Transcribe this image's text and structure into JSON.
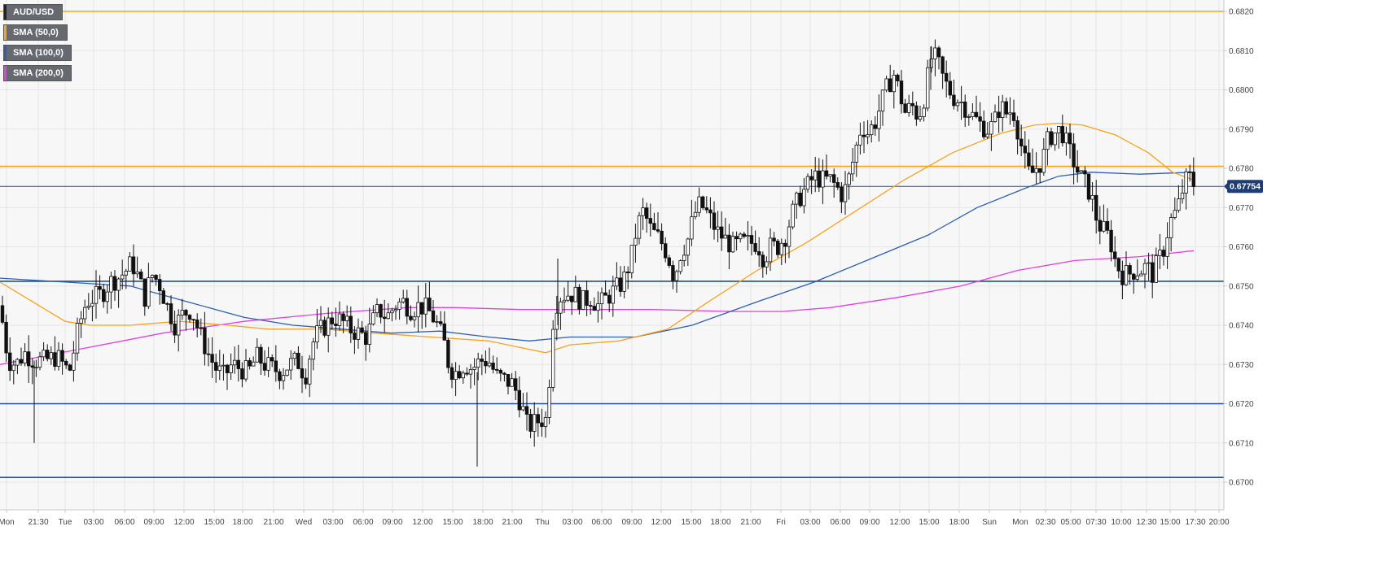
{
  "symbol": "AUD/USD",
  "legend": [
    {
      "label": "AUD/USD",
      "color": "#222222"
    },
    {
      "label": "SMA (50,0)",
      "color": "#f5a31c"
    },
    {
      "label": "SMA (100,0)",
      "color": "#2d5fb0"
    },
    {
      "label": "SMA (200,0)",
      "color": "#e040e0"
    }
  ],
  "colors": {
    "sma50": "#f5a31c",
    "sma100": "#2d5fb0",
    "sma200": "#e040e0",
    "resistance": "#f5a31c",
    "support": "#1f4e9a",
    "current_line": "#1f4e9a",
    "price_tag_bg": "#1f3c73",
    "grid": "#e6e6e6",
    "plot_bg": "#f7f7f7"
  },
  "chart_data": {
    "type": "candlestick",
    "instrument": "AUD/USD",
    "timeframe": "hourly",
    "ylim": [
      0.6692,
      0.6824
    ],
    "y_ticks": [
      "0.6700",
      "0.6710",
      "0.6720",
      "0.6730",
      "0.6740",
      "0.6750",
      "0.6760",
      "0.6770",
      "0.6780",
      "0.6790",
      "0.6800",
      "0.6810",
      "0.6820"
    ],
    "x_ticks": [
      "Mon",
      "21:30",
      "Tue",
      "03:00",
      "06:00",
      "09:00",
      "12:00",
      "15:00",
      "18:00",
      "21:00",
      "Wed",
      "03:00",
      "06:00",
      "09:00",
      "12:00",
      "15:00",
      "18:00",
      "21:00",
      "Thu",
      "03:00",
      "06:00",
      "09:00",
      "12:00",
      "15:00",
      "18:00",
      "21:00",
      "Fri",
      "03:00",
      "06:00",
      "09:00",
      "12:00",
      "15:00",
      "18:00",
      "Sun",
      "Mon",
      "02:30",
      "05:00",
      "07:30",
      "10:00",
      "12:30",
      "15:00",
      "17:30",
      "20:00"
    ],
    "current_price": "0.67754",
    "horizontal_levels": [
      {
        "price": 0.682,
        "kind": "resistance"
      },
      {
        "price": 0.67805,
        "kind": "resistance"
      },
      {
        "price": 0.67754,
        "kind": "current"
      },
      {
        "price": 0.67512,
        "kind": "support"
      },
      {
        "price": 0.672,
        "kind": "support"
      },
      {
        "price": 0.67012,
        "kind": "support"
      }
    ],
    "price_path": [
      [
        0,
        0.6745
      ],
      [
        10,
        0.6731
      ],
      [
        20,
        0.673
      ],
      [
        30,
        0.6733
      ],
      [
        42,
        0.6731
      ],
      [
        55,
        0.6731
      ],
      [
        70,
        0.6732
      ],
      [
        85,
        0.6728
      ],
      [
        95,
        0.6738
      ],
      [
        100,
        0.6742
      ],
      [
        106,
        0.6746
      ],
      [
        115,
        0.6747
      ],
      [
        125,
        0.6748
      ],
      [
        135,
        0.6751
      ],
      [
        145,
        0.6752
      ],
      [
        155,
        0.6754
      ],
      [
        162,
        0.6756
      ],
      [
        170,
        0.6752
      ],
      [
        178,
        0.6747
      ],
      [
        186,
        0.6753
      ],
      [
        195,
        0.6751
      ],
      [
        205,
        0.6745
      ],
      [
        215,
        0.674
      ],
      [
        225,
        0.6743
      ],
      [
        235,
        0.6744
      ],
      [
        245,
        0.6738
      ],
      [
        255,
        0.6733
      ],
      [
        265,
        0.6729
      ],
      [
        275,
        0.6727
      ],
      [
        285,
        0.673
      ],
      [
        295,
        0.6729
      ],
      [
        305,
        0.6728
      ],
      [
        315,
        0.6732
      ],
      [
        325,
        0.673
      ],
      [
        335,
        0.6729
      ],
      [
        345,
        0.6728
      ],
      [
        355,
        0.673
      ],
      [
        365,
        0.6731
      ],
      [
        375,
        0.6727
      ],
      [
        383,
        0.6735
      ],
      [
        390,
        0.6738
      ],
      [
        400,
        0.674
      ],
      [
        410,
        0.6742
      ],
      [
        420,
        0.6741
      ],
      [
        430,
        0.6739
      ],
      [
        440,
        0.6738
      ],
      [
        450,
        0.6737
      ],
      [
        458,
        0.6741
      ],
      [
        465,
        0.6744
      ],
      [
        475,
        0.6742
      ],
      [
        485,
        0.6745
      ],
      [
        495,
        0.6746
      ],
      [
        505,
        0.6744
      ],
      [
        515,
        0.6745
      ],
      [
        525,
        0.6744
      ],
      [
        535,
        0.6741
      ],
      [
        545,
        0.6736
      ],
      [
        552,
        0.6729
      ],
      [
        560,
        0.6728
      ],
      [
        570,
        0.673
      ],
      [
        580,
        0.6729
      ],
      [
        590,
        0.6731
      ],
      [
        600,
        0.6731
      ],
      [
        610,
        0.6727
      ],
      [
        620,
        0.6726
      ],
      [
        630,
        0.6725
      ],
      [
        640,
        0.672
      ],
      [
        648,
        0.6714
      ],
      [
        656,
        0.6715
      ],
      [
        664,
        0.6716
      ],
      [
        672,
        0.6716
      ],
      [
        678,
        0.674
      ],
      [
        685,
        0.6747
      ],
      [
        695,
        0.6748
      ],
      [
        705,
        0.6748
      ],
      [
        715,
        0.6746
      ],
      [
        725,
        0.6747
      ],
      [
        735,
        0.6745
      ],
      [
        745,
        0.6747
      ],
      [
        755,
        0.6749
      ],
      [
        765,
        0.6751
      ],
      [
        775,
        0.6757
      ],
      [
        782,
        0.6765
      ],
      [
        790,
        0.6769
      ],
      [
        800,
        0.6764
      ],
      [
        810,
        0.6762
      ],
      [
        820,
        0.6758
      ],
      [
        828,
        0.6752
      ],
      [
        835,
        0.6758
      ],
      [
        845,
        0.6762
      ],
      [
        852,
        0.6768
      ],
      [
        860,
        0.6771
      ],
      [
        870,
        0.6768
      ],
      [
        880,
        0.6764
      ],
      [
        890,
        0.6762
      ],
      [
        900,
        0.676
      ],
      [
        910,
        0.6761
      ],
      [
        920,
        0.6761
      ],
      [
        930,
        0.6761
      ],
      [
        938,
        0.6757
      ],
      [
        946,
        0.676
      ],
      [
        955,
        0.676
      ],
      [
        965,
        0.6763
      ],
      [
        972,
        0.6768
      ],
      [
        980,
        0.6772
      ],
      [
        990,
        0.6775
      ],
      [
        1000,
        0.6778
      ],
      [
        1010,
        0.6777
      ],
      [
        1020,
        0.6777
      ],
      [
        1028,
        0.6775
      ],
      [
        1035,
        0.6773
      ],
      [
        1042,
        0.6777
      ],
      [
        1050,
        0.6784
      ],
      [
        1058,
        0.6791
      ],
      [
        1066,
        0.6789
      ],
      [
        1075,
        0.6792
      ],
      [
        1083,
        0.6797
      ],
      [
        1090,
        0.6801
      ],
      [
        1098,
        0.6804
      ],
      [
        1105,
        0.6799
      ],
      [
        1112,
        0.6794
      ],
      [
        1120,
        0.6796
      ],
      [
        1128,
        0.6793
      ],
      [
        1136,
        0.6799
      ],
      [
        1143,
        0.6808
      ],
      [
        1150,
        0.6808
      ],
      [
        1158,
        0.6803
      ],
      [
        1165,
        0.68
      ],
      [
        1172,
        0.6798
      ],
      [
        1180,
        0.6797
      ],
      [
        1188,
        0.6795
      ],
      [
        1196,
        0.6793
      ],
      [
        1205,
        0.6791
      ],
      [
        1213,
        0.679
      ],
      [
        1220,
        0.6791
      ],
      [
        1228,
        0.6796
      ],
      [
        1236,
        0.6794
      ],
      [
        1244,
        0.6795
      ],
      [
        1252,
        0.6788
      ],
      [
        1258,
        0.6782
      ],
      [
        1265,
        0.6778
      ],
      [
        1272,
        0.678
      ],
      [
        1280,
        0.6782
      ],
      [
        1288,
        0.6788
      ],
      [
        1296,
        0.6789
      ],
      [
        1303,
        0.679
      ],
      [
        1310,
        0.6786
      ],
      [
        1318,
        0.6782
      ],
      [
        1326,
        0.6778
      ],
      [
        1333,
        0.6776
      ],
      [
        1340,
        0.6773
      ],
      [
        1348,
        0.6766
      ],
      [
        1356,
        0.6764
      ],
      [
        1363,
        0.6762
      ],
      [
        1370,
        0.6756
      ],
      [
        1378,
        0.6753
      ],
      [
        1386,
        0.6753
      ],
      [
        1393,
        0.6754
      ],
      [
        1400,
        0.6754
      ],
      [
        1408,
        0.6755
      ],
      [
        1415,
        0.6753
      ],
      [
        1422,
        0.6756
      ],
      [
        1430,
        0.676
      ],
      [
        1436,
        0.6766
      ],
      [
        1442,
        0.6768
      ],
      [
        1448,
        0.6771
      ],
      [
        1454,
        0.6776
      ],
      [
        1460,
        0.6778
      ],
      [
        1466,
        0.6776
      ]
    ],
    "sma50": [
      [
        0,
        0.6751
      ],
      [
        40,
        0.6746
      ],
      [
        80,
        0.6741
      ],
      [
        110,
        0.674
      ],
      [
        160,
        0.674
      ],
      [
        220,
        0.6741
      ],
      [
        280,
        0.674
      ],
      [
        330,
        0.6739
      ],
      [
        400,
        0.6739
      ],
      [
        460,
        0.6738
      ],
      [
        530,
        0.6737
      ],
      [
        600,
        0.6736
      ],
      [
        670,
        0.6733
      ],
      [
        700,
        0.6735
      ],
      [
        760,
        0.6736
      ],
      [
        820,
        0.6739
      ],
      [
        870,
        0.6746
      ],
      [
        930,
        0.6754
      ],
      [
        990,
        0.6761
      ],
      [
        1050,
        0.6769
      ],
      [
        1110,
        0.6777
      ],
      [
        1170,
        0.6784
      ],
      [
        1230,
        0.6789
      ],
      [
        1270,
        0.6791
      ],
      [
        1300,
        0.67915
      ],
      [
        1330,
        0.6791
      ],
      [
        1370,
        0.67885
      ],
      [
        1410,
        0.6784
      ],
      [
        1440,
        0.6779
      ],
      [
        1466,
        0.6777
      ]
    ],
    "sma100": [
      [
        0,
        0.6752
      ],
      [
        80,
        0.6751
      ],
      [
        160,
        0.675
      ],
      [
        230,
        0.6746
      ],
      [
        300,
        0.6742
      ],
      [
        360,
        0.674
      ],
      [
        420,
        0.6739
      ],
      [
        480,
        0.6738
      ],
      [
        540,
        0.67385
      ],
      [
        600,
        0.6737
      ],
      [
        650,
        0.6736
      ],
      [
        700,
        0.6737
      ],
      [
        780,
        0.6737
      ],
      [
        850,
        0.674
      ],
      [
        930,
        0.6746
      ],
      [
        1000,
        0.6751
      ],
      [
        1070,
        0.6757
      ],
      [
        1140,
        0.6763
      ],
      [
        1200,
        0.677
      ],
      [
        1260,
        0.6775
      ],
      [
        1300,
        0.6778
      ],
      [
        1340,
        0.6779
      ],
      [
        1400,
        0.67785
      ],
      [
        1466,
        0.6779
      ]
    ],
    "sma200": [
      [
        0,
        0.673
      ],
      [
        100,
        0.6734
      ],
      [
        200,
        0.6738
      ],
      [
        300,
        0.6741
      ],
      [
        400,
        0.6743
      ],
      [
        500,
        0.67445
      ],
      [
        560,
        0.67445
      ],
      [
        640,
        0.6744
      ],
      [
        700,
        0.6744
      ],
      [
        800,
        0.6744
      ],
      [
        900,
        0.67435
      ],
      [
        960,
        0.67435
      ],
      [
        1020,
        0.67445
      ],
      [
        1100,
        0.6747
      ],
      [
        1180,
        0.675
      ],
      [
        1250,
        0.6754
      ],
      [
        1320,
        0.67565
      ],
      [
        1400,
        0.67575
      ],
      [
        1466,
        0.6759
      ]
    ]
  }
}
